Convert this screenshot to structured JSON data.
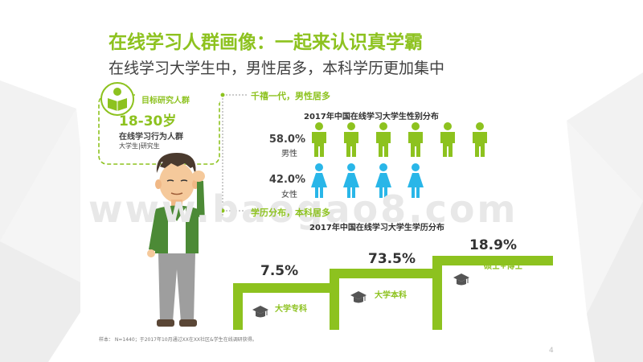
{
  "title": "在线学习人群画像：一起来认识真学霸",
  "subtitle": "在线学习大学生中，男性居多，本科学历更加集中",
  "target_box": {
    "label": "目标研究人群",
    "age_range": "18-30岁",
    "behavior": "在线学习行为人群",
    "students": "大学生|研究生"
  },
  "gender_section": {
    "heading": "千禧一代，男性居多",
    "chart_title": "2017年中国在线学习大学生性别分布",
    "male_pct": "58.0%",
    "male_label": "男性",
    "female_pct": "42.0%",
    "female_label": "女性"
  },
  "education_section": {
    "heading": "学历分布，本科居多",
    "chart_title": "2017年中国在线学习大学生学历分布"
  },
  "chart_data": [
    {
      "type": "bar",
      "title": "2017年中国在线学习大学生性别分布",
      "categories": [
        "男性",
        "女性"
      ],
      "values": [
        58.0,
        42.0
      ],
      "unit": "%",
      "icon_counts": [
        6,
        4
      ],
      "colors": [
        "#8dc21f",
        "#29b6e8"
      ]
    },
    {
      "type": "bar",
      "title": "2017年中国在线学习大学生学历分布",
      "categories": [
        "大学专科",
        "大学本科",
        "硕士+博士"
      ],
      "values": [
        7.5,
        73.5,
        18.9
      ],
      "unit": "%",
      "value_labels": [
        "7.5%",
        "73.5%",
        "18.9%"
      ]
    }
  ],
  "footnote": "样本： N=1440；于2017年10月通过XX在XX社区&学生在线调研获得。",
  "page_number": "4",
  "watermark": "www.baogao8.com",
  "colors": {
    "accent": "#8dc21f",
    "female": "#29b6e8",
    "text": "#404040"
  }
}
